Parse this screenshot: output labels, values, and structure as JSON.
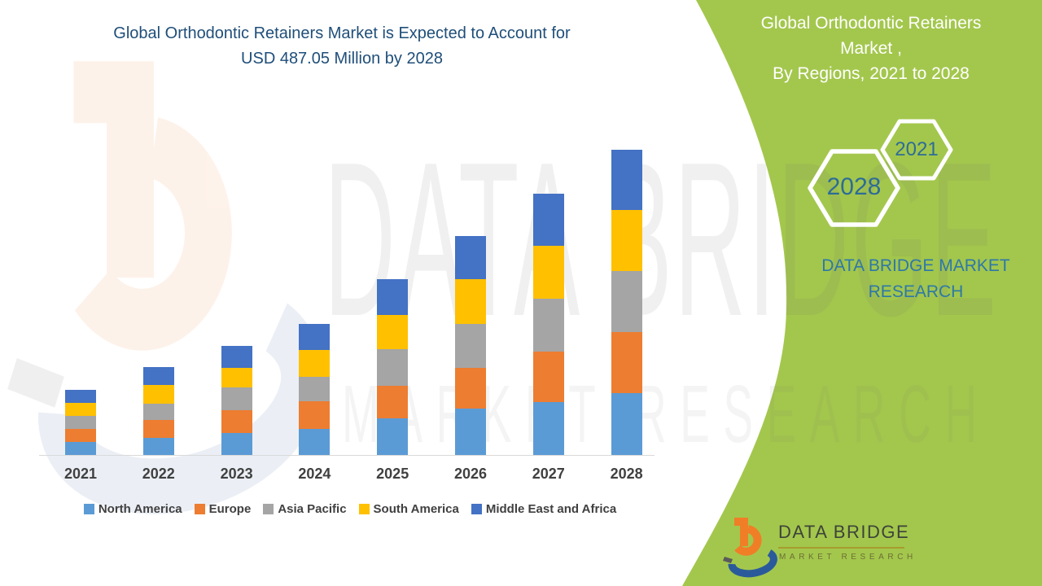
{
  "header": {
    "title_line1": "Global Orthodontic Retainers Market is Expected to Account for",
    "title_line2": "USD 487.05 Million by 2028"
  },
  "side_panel": {
    "title_line1": "Global Orthodontic Retainers",
    "title_line2": "Market ,",
    "title_line3": "By Regions, 2021 to 2028",
    "hexagon_years": {
      "small": "2021",
      "large": "2028"
    },
    "brand_line1": "DATA BRIDGE MARKET",
    "brand_line2": "RESEARCH"
  },
  "watermark": {
    "line1": "DATA BRIDGE",
    "line2": "MARKET RESEARCH"
  },
  "footer_logo": {
    "brand": "DATA BRIDGE",
    "tagline": "MARKET RESEARCH"
  },
  "colors": {
    "title_text": "#1F4E79",
    "panel_green": "#A3C74D",
    "panel_text": "#FFFFFF",
    "accent_teal": "#2E78A8",
    "hex_year_text": "#2E6C96",
    "axis_label": "#404040",
    "axis_line": "#D9D9D9",
    "logo_orange": "#F07E26",
    "logo_blue": "#2B5A9B"
  },
  "chart_data": {
    "type": "bar",
    "stacked": true,
    "title": "Global Orthodontic Retainers Market is Expected to Account for USD 487.05 Million by 2028",
    "unit": "USD Million",
    "categories": [
      "2021",
      "2022",
      "2023",
      "2024",
      "2025",
      "2026",
      "2027",
      "2028"
    ],
    "series": [
      {
        "name": "North America",
        "color": "#5B9BD5",
        "values": [
          20.8,
          27.3,
          35.5,
          41.9,
          58.4,
          74.0,
          84.4,
          98.7
        ]
      },
      {
        "name": "Europe",
        "color": "#ED7D31",
        "values": [
          20.8,
          28.6,
          36.0,
          43.8,
          51.9,
          64.9,
          80.5,
          97.4
        ]
      },
      {
        "name": "Asia Pacific",
        "color": "#A5A5A5",
        "values": [
          20.8,
          26.0,
          36.8,
          39.4,
          58.4,
          70.1,
          84.4,
          97.4
        ]
      },
      {
        "name": "South America",
        "color": "#FFC000",
        "values": [
          20.8,
          30.3,
          31.2,
          42.5,
          54.5,
          71.4,
          84.4,
          97.4
        ]
      },
      {
        "name": "Middle East and Africa",
        "color": "#4472C4",
        "values": [
          20.8,
          28.2,
          34.7,
          41.6,
          57.1,
          68.8,
          83.1,
          96.15
        ]
      }
    ],
    "totals": [
      104.0,
      140.4,
      174.2,
      209.2,
      280.3,
      349.2,
      416.8,
      487.05
    ],
    "xlabel": "",
    "ylabel": "",
    "ylim": [
      0,
      500
    ],
    "grid": false,
    "y_axis_visible": false,
    "legend_position": "bottom"
  }
}
